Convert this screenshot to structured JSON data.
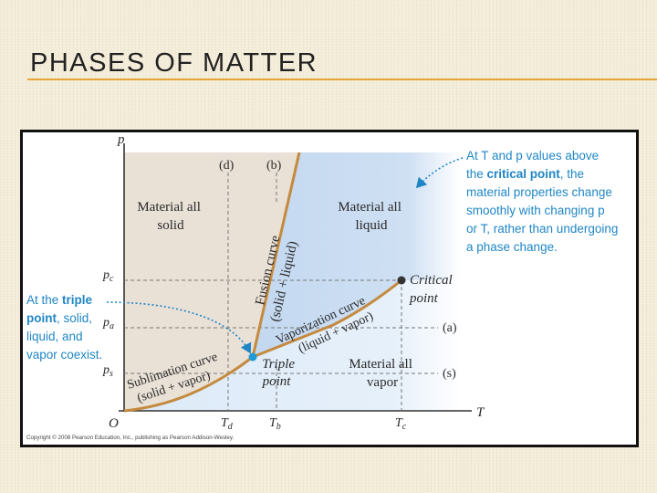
{
  "slide": {
    "title": "PHASES OF MATTER"
  },
  "diagram": {
    "axes": {
      "y_label": "p",
      "x_label": "T",
      "origin": "O"
    },
    "ticks": {
      "pc": "p",
      "pc_sub": "c",
      "pa": "p",
      "pa_sub": "a",
      "ps": "p",
      "ps_sub": "s",
      "td": "T",
      "td_sub": "d",
      "tb": "T",
      "tb_sub": "b",
      "tc": "T",
      "tc_sub": "c"
    },
    "lines": {
      "d": "(d)",
      "b": "(b)",
      "a": "(a)",
      "s": "(s)"
    },
    "regions": {
      "solid_1": "Material all",
      "solid_2": "solid",
      "liquid_1": "Material all",
      "liquid_2": "liquid",
      "vapor_1": "Material all",
      "vapor_2": "vapor"
    },
    "curves": {
      "fusion_1": "Fusion curve",
      "fusion_2": "(solid + liquid)",
      "vaporization_1": "Vaporization curve",
      "vaporization_2": "(liquid + vapor)",
      "sublimation_1": "Sublimation curve",
      "sublimation_2": "(solid + vapor)"
    },
    "points": {
      "critical_1": "Critical",
      "critical_2": "point",
      "triple_1": "Triple",
      "triple_2": "point"
    },
    "annotations": {
      "triple_lines": [
        "At the ",
        "triple",
        "point",
        ", solid,",
        "liquid, and",
        "vapor coexist."
      ],
      "critical_lines": [
        "At T and p values above",
        "the ",
        "critical point",
        ", the",
        "material properties change",
        "smoothly with changing p",
        "or T, rather than undergoing",
        "a phase change."
      ]
    },
    "copyright": "Copyright © 2008 Pearson Education, Inc., publishing as Pearson Addison-Wesley.",
    "colors": {
      "solid_region": "#e9e0d6",
      "liquid_region": "#c8dcf1",
      "vapor_region": "#e1eefa",
      "curve": "#c48a3e",
      "annotation_blue": "#1f86c6",
      "point_dark": "#333333"
    }
  }
}
